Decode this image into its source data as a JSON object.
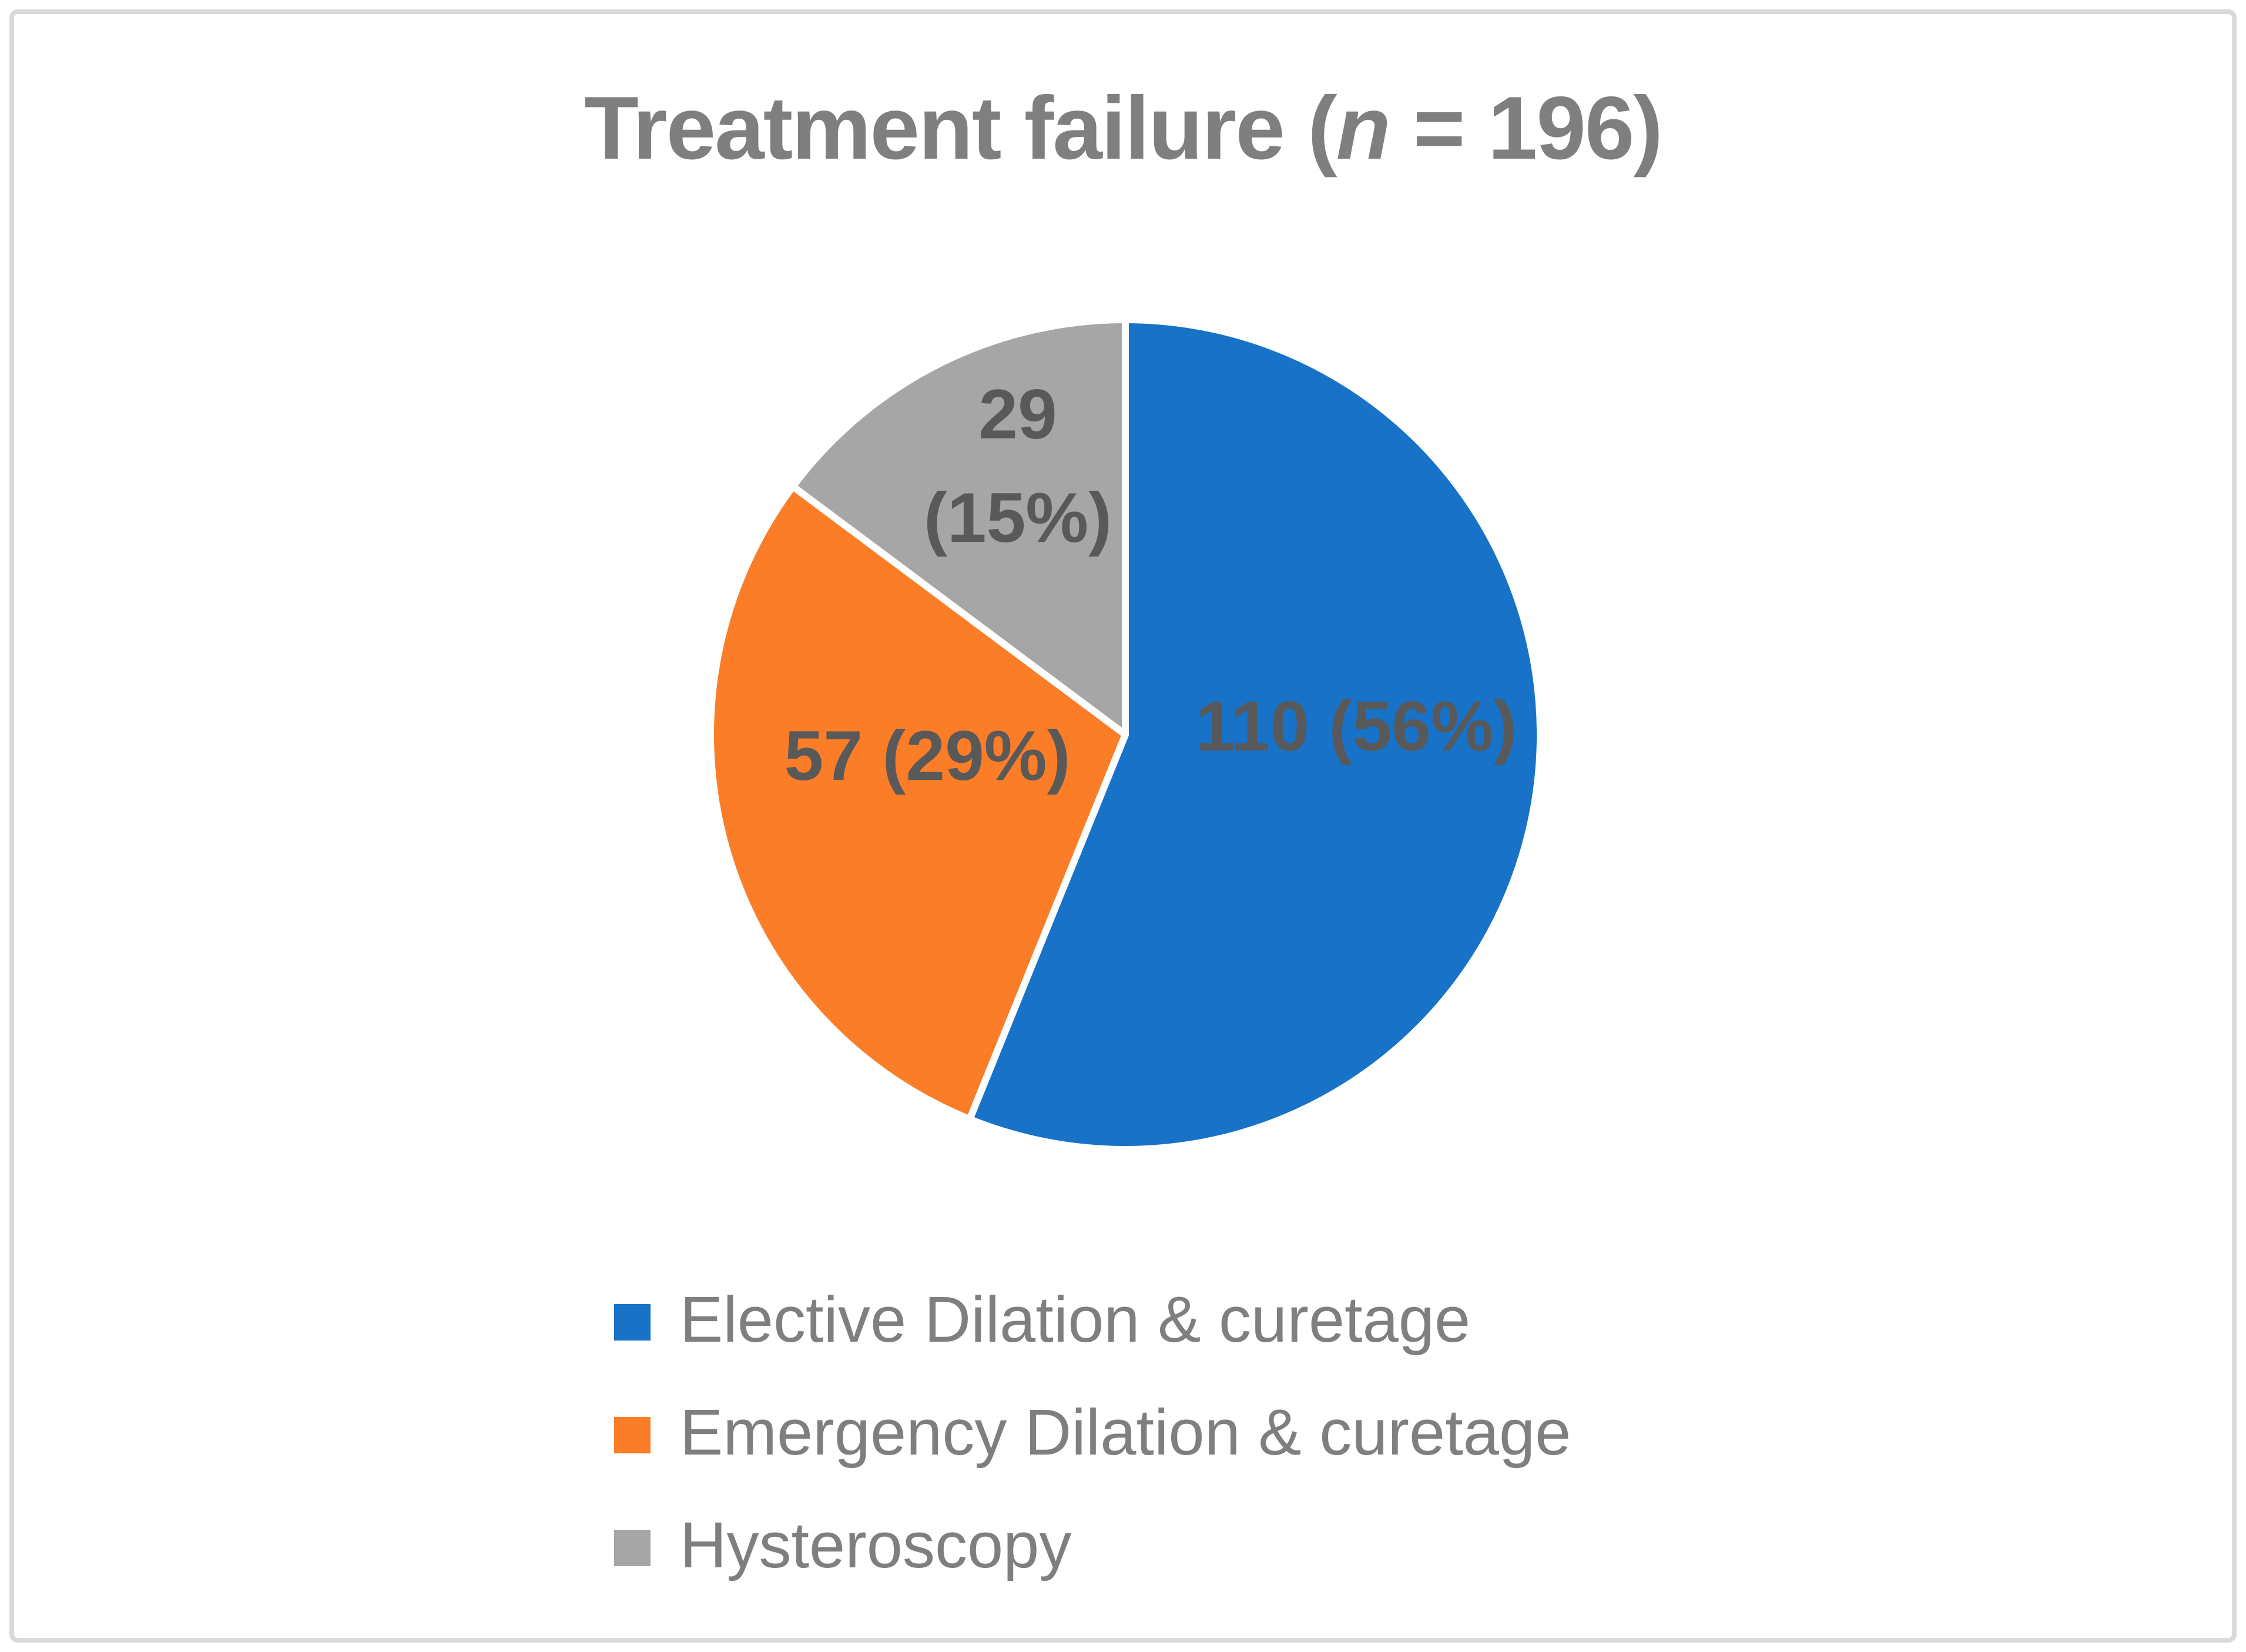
{
  "title": {
    "prefix": "Treatment failure (",
    "italic": "n",
    "suffix": " = 196)",
    "full": "Treatment failure (n = 196)"
  },
  "chart_data": {
    "type": "pie",
    "title": "Treatment failure (n = 196)",
    "total_n": 196,
    "start_angle_deg": 0,
    "direction": "clockwise",
    "legend_position": "bottom-left",
    "title_color": "#7F7F7F",
    "label_color": "#595959",
    "separator_color": "#FFFFFF",
    "border_color": "#D9D9D9",
    "slices": [
      {
        "label": "Elective Dilation & curetage",
        "value": 110,
        "percent": 56,
        "data_label": "110 (56%)",
        "color": "#1772C8"
      },
      {
        "label": "Emergency Dilation & curetage",
        "value": 57,
        "percent": 29,
        "data_label": "57 (29%)",
        "color": "#FC7D27"
      },
      {
        "label": "Hysteroscopy",
        "value": 29,
        "percent": 15,
        "data_label": [
          "29",
          "(15%)"
        ],
        "color": "#A6A6A6"
      }
    ]
  }
}
